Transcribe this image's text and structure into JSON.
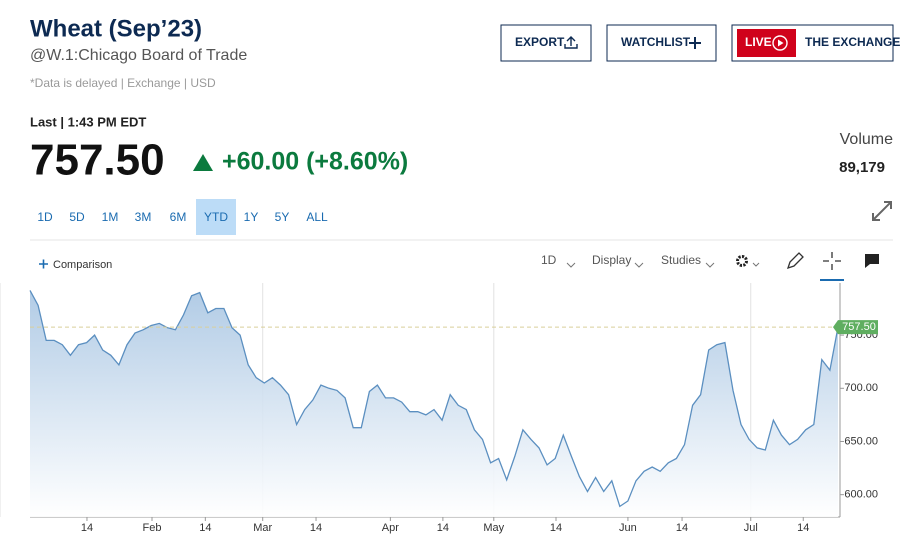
{
  "header": {
    "title": "Wheat (Sep’23)",
    "symbol": "@W.1:Chicago Board of Trade",
    "note": "*Data is delayed | Exchange | USD",
    "buttons": [
      "EXPORT",
      "WATCHLIST",
      "LIVE",
      "THE EXCHANGE"
    ]
  },
  "quote": {
    "time": "Last | 1:43 PM EDT",
    "change": "+60.00 (+8.60%)",
    "volume_label": "Volume",
    "volume": "89,179"
  },
  "ranges": [
    "1D",
    "5D",
    "1M",
    "3M",
    "6M",
    "YTD",
    "1Y",
    "5Y",
    "ALL"
  ],
  "selected_range": 5,
  "toolbar": {
    "comparison": "Comparison",
    "interval": "1D",
    "display": "Display",
    "studies": "Studies"
  },
  "chart_data": {
    "type": "line",
    "color": "#5b8fc0",
    "last": {
      "value": 757.5,
      "label": "757.50"
    },
    "values": [
      792,
      778,
      745,
      745,
      741,
      731,
      741,
      743,
      750,
      736,
      731,
      722,
      741,
      752,
      755,
      759,
      761,
      757,
      755,
      769,
      787,
      790,
      771,
      775,
      775,
      757,
      750,
      722,
      710,
      705,
      710,
      703,
      694,
      666,
      680,
      689,
      703,
      700,
      698,
      691,
      663,
      663,
      697,
      703,
      691,
      691,
      687,
      678,
      678,
      675,
      680,
      670,
      694,
      684,
      680,
      661,
      652,
      630,
      634,
      614,
      636,
      661,
      652,
      644,
      628,
      634,
      656,
      636,
      617,
      603,
      616,
      603,
      613,
      589,
      594,
      613,
      622,
      626,
      622,
      630,
      634,
      647,
      684,
      694,
      736,
      741,
      743,
      698,
      666,
      652,
      644,
      642,
      670,
      656,
      647,
      652,
      661,
      666,
      727,
      717,
      757.5
    ],
    "xlim": [
      0,
      100
    ],
    "xticks": [
      {
        "value": 7.05,
        "label": "14"
      },
      {
        "value": 15.1,
        "label": "Feb"
      },
      {
        "value": 21.7,
        "label": "14"
      },
      {
        "value": 28.8,
        "label": "Mar"
      },
      {
        "value": 35.4,
        "label": "14"
      },
      {
        "value": 44.6,
        "label": "Apr"
      },
      {
        "value": 51.1,
        "label": "14"
      },
      {
        "value": 57.4,
        "label": "May"
      },
      {
        "value": 65.1,
        "label": "14"
      },
      {
        "value": 74.0,
        "label": "Jun"
      },
      {
        "value": 80.7,
        "label": "14"
      },
      {
        "value": 89.2,
        "label": "Jul"
      },
      {
        "value": 95.7,
        "label": "14"
      }
    ],
    "month_grid": [
      1,
      3,
      5,
      7,
      9,
      11
    ],
    "ylim": [
      579,
      799
    ],
    "yticks": [
      {
        "value": 600,
        "label": "600.00"
      },
      {
        "value": 650,
        "label": "650.00"
      },
      {
        "value": 700,
        "label": "700.00"
      },
      {
        "value": 750,
        "label": "750.00"
      }
    ]
  }
}
